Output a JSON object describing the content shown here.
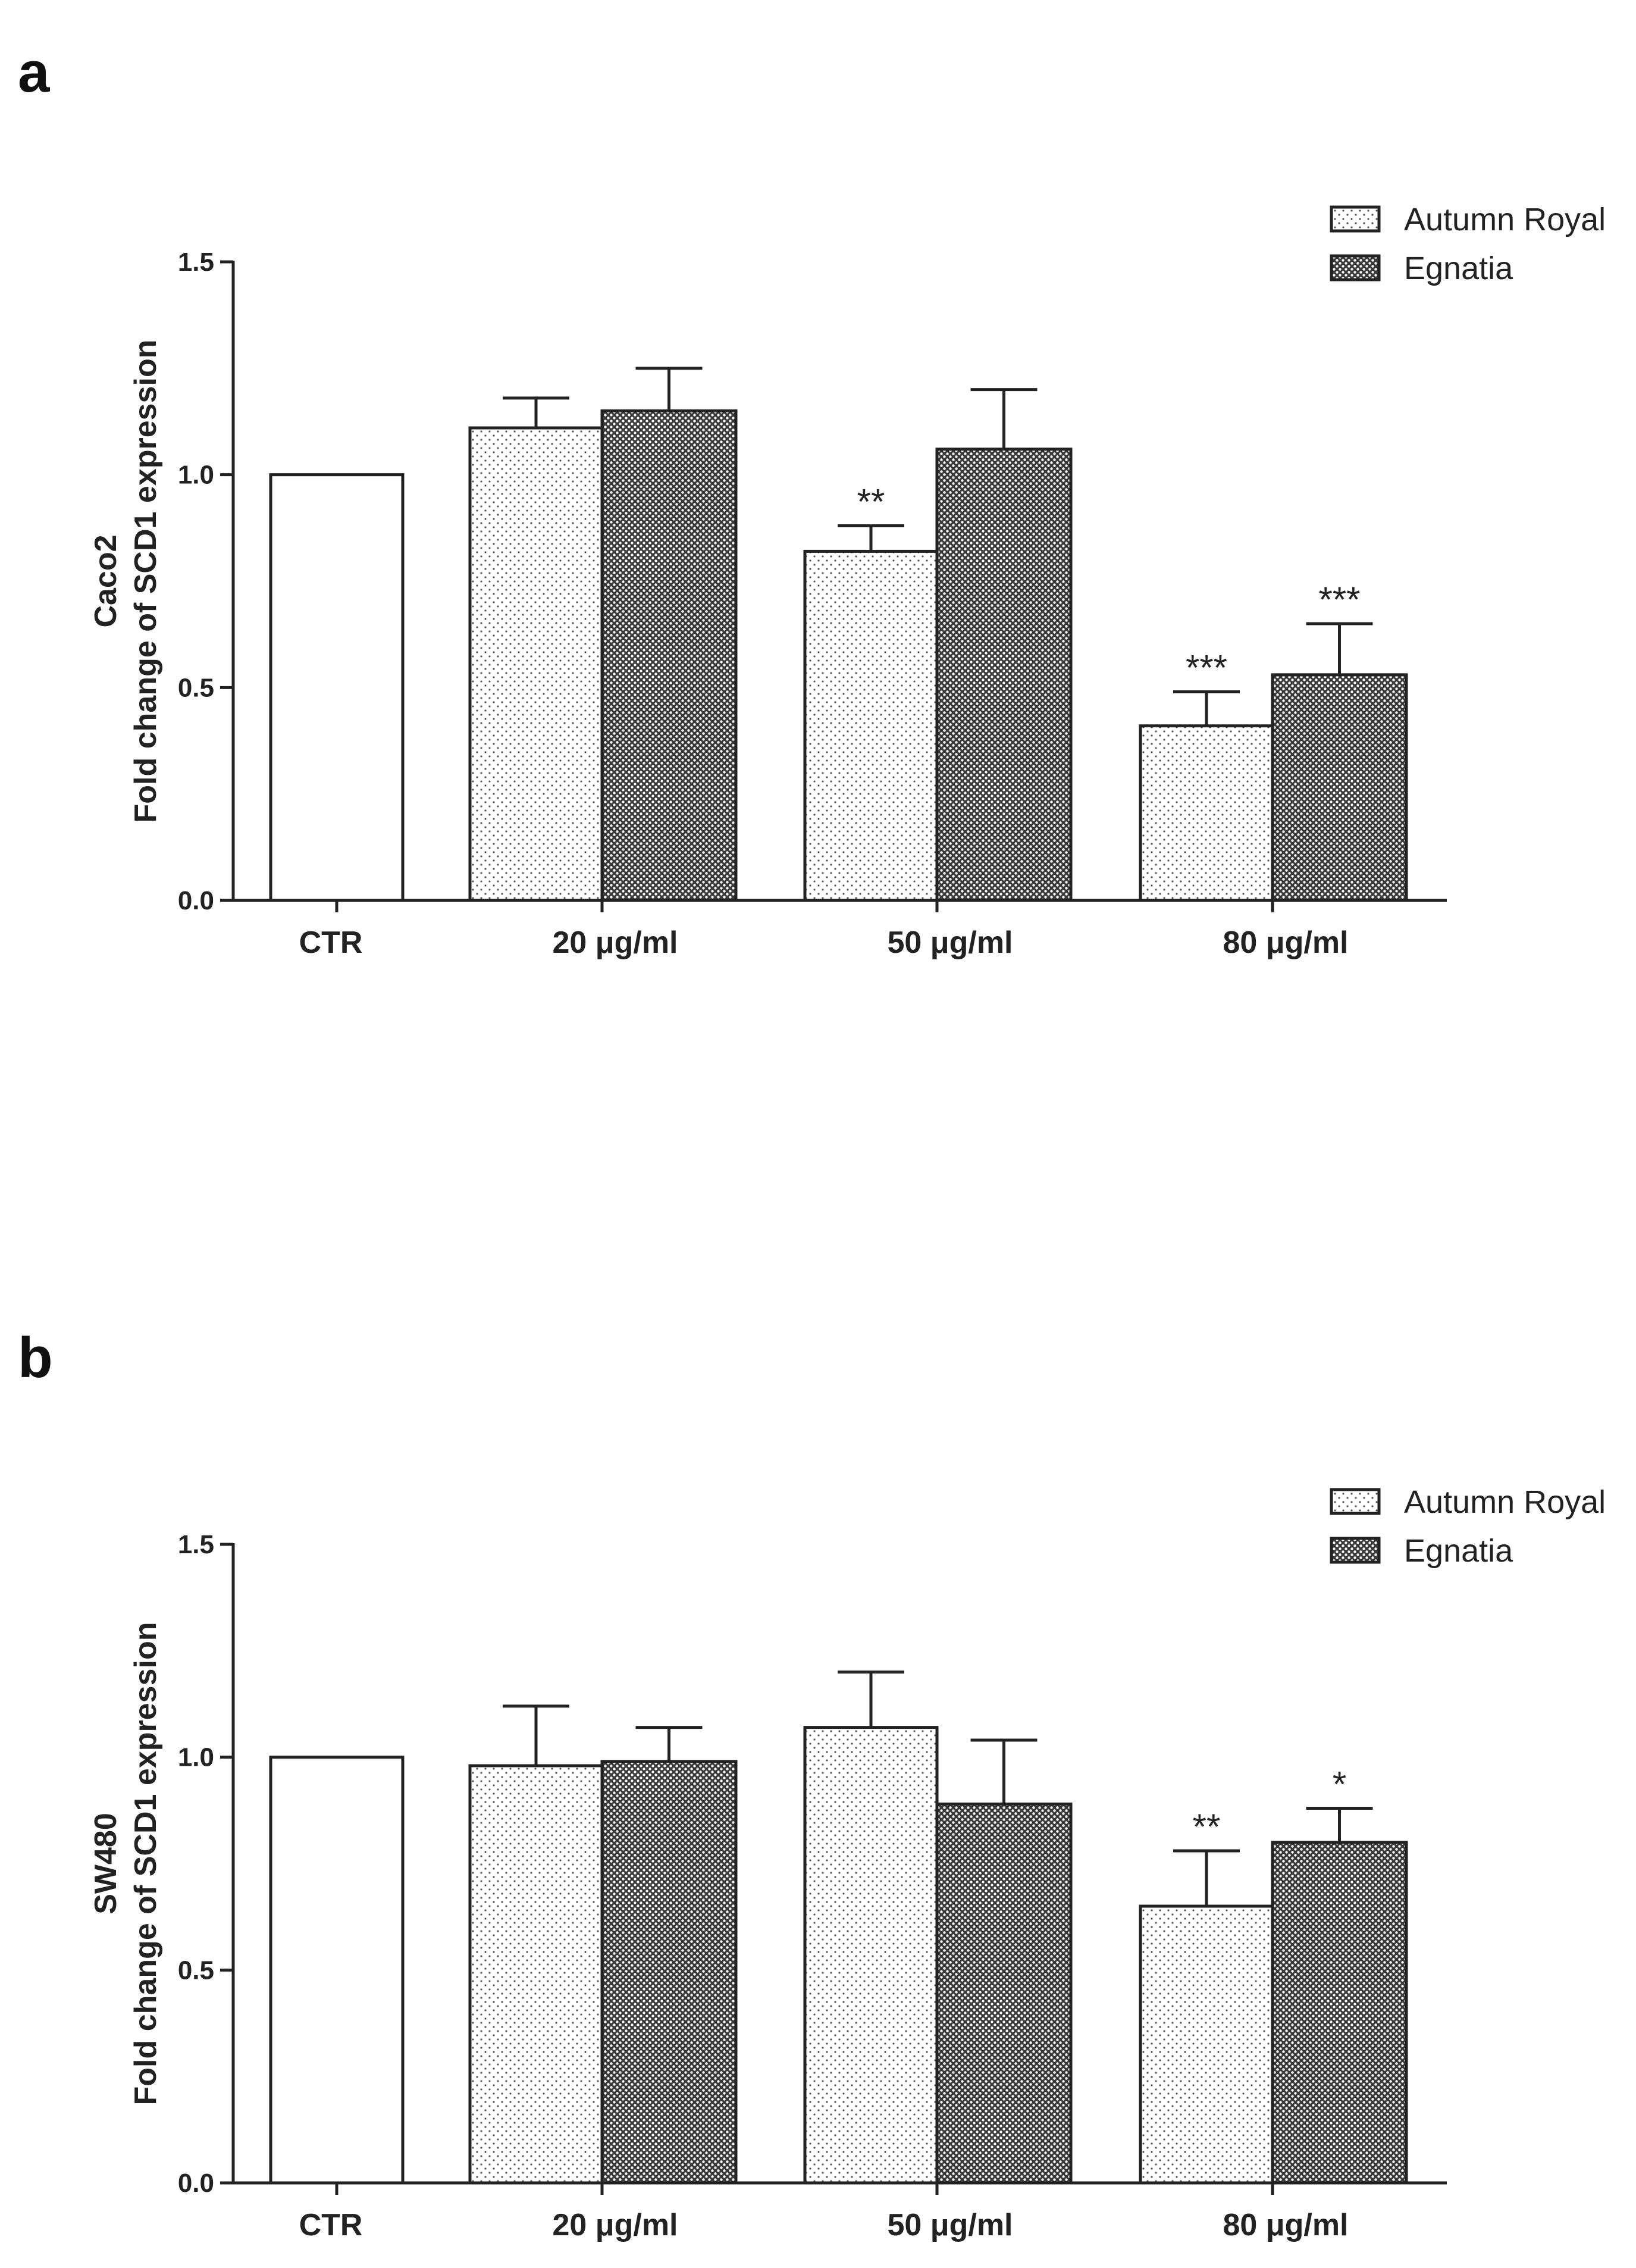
{
  "chart_data": [
    {
      "panel": "a",
      "type": "bar",
      "ylabel_line1": "Caco2",
      "ylabel_line2": "Fold change of SCD1 expression",
      "ylim": [
        0,
        1.5
      ],
      "yticks": [
        "0.0",
        "0.5",
        "1.0",
        "1.5"
      ],
      "categories": [
        "CTR",
        "20 μg/ml",
        "50 μg/ml",
        "80 μg/ml"
      ],
      "control": {
        "name": "CTR",
        "value": 1.0
      },
      "series": [
        {
          "name": "Autumn Royal",
          "values": [
            null,
            1.11,
            0.82,
            0.41
          ],
          "errors": [
            null,
            0.07,
            0.06,
            0.08
          ],
          "significance": [
            "",
            "",
            "**",
            "***"
          ]
        },
        {
          "name": "Egnatia",
          "values": [
            null,
            1.15,
            1.06,
            0.53
          ],
          "errors": [
            null,
            0.1,
            0.14,
            0.12
          ],
          "significance": [
            "",
            "",
            "",
            "***"
          ]
        }
      ],
      "legend": [
        "Autumn Royal",
        "Egnatia"
      ]
    },
    {
      "panel": "b",
      "type": "bar",
      "ylabel_line1": "SW480",
      "ylabel_line2": "Fold change of SCD1 expression",
      "ylim": [
        0,
        1.5
      ],
      "yticks": [
        "0.0",
        "0.5",
        "1.0",
        "1.5"
      ],
      "categories": [
        "CTR",
        "20 μg/ml",
        "50 μg/ml",
        "80 μg/ml"
      ],
      "control": {
        "name": "CTR",
        "value": 1.0
      },
      "series": [
        {
          "name": "Autumn Royal",
          "values": [
            null,
            0.98,
            1.07,
            0.65
          ],
          "errors": [
            null,
            0.14,
            0.13,
            0.13
          ],
          "significance": [
            "",
            "",
            "",
            "**"
          ]
        },
        {
          "name": "Egnatia",
          "values": [
            null,
            0.99,
            0.89,
            0.8
          ],
          "errors": [
            null,
            0.08,
            0.15,
            0.08
          ],
          "significance": [
            "",
            "",
            "",
            "*"
          ]
        }
      ],
      "legend": [
        "Autumn Royal",
        "Egnatia"
      ]
    }
  ]
}
